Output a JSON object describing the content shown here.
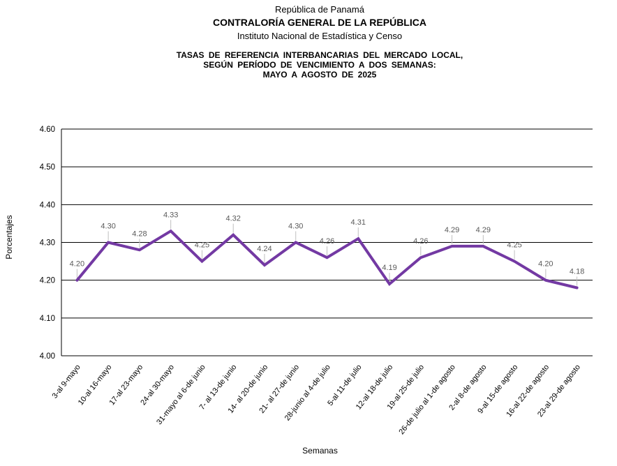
{
  "header": {
    "line1": "República de Panamá",
    "line2": "CONTRALORÍA GENERAL DE LA REPÚBLICA",
    "line3": "Instituto Nacional de Estadística y Censo"
  },
  "chart_title": {
    "line1": "TASAS DE REFERENCIA INTERBANCARIAS DEL MERCADO LOCAL,",
    "line2": "SEGÚN PERÍODO DE VENCIMIENTO A DOS SEMANAS:",
    "line3": "MAYO A AGOSTO DE 2025"
  },
  "chart_data": {
    "type": "line",
    "title": "TASAS DE REFERENCIA INTERBANCARIAS DEL MERCADO LOCAL, SEGÚN PERÍODO DE VENCIMIENTO A DOS SEMANAS: MAYO A AGOSTO DE 2025",
    "categories": [
      "3-al 9-mayo",
      "10-al 16-mayo",
      "17-al 23-mayo",
      "24-al 30-mayo",
      "31-mayo al 6-de junio",
      "7- al 13-de junio",
      "14- al 20-de junio",
      "21- al 27-de junio",
      "28-junio al 4-de julio",
      "5-al 11-de julio",
      "12-al 18-de julio",
      "19-al 25-de julio",
      "26-de julio al 1-de agosto",
      "2-al 8-de agosto",
      "9-al 15-de agosto",
      "16-al 22-de agosto",
      "23-al 29-de agosto"
    ],
    "values": [
      4.2,
      4.3,
      4.28,
      4.33,
      4.25,
      4.32,
      4.24,
      4.3,
      4.26,
      4.31,
      4.19,
      4.26,
      4.29,
      4.29,
      4.25,
      4.2,
      4.18
    ],
    "xlabel": "Semanas",
    "ylabel": "Porcentajes",
    "ylim": [
      4.0,
      4.6
    ],
    "yticks": [
      "4.00",
      "4.10",
      "4.20",
      "4.30",
      "4.40",
      "4.50",
      "4.60"
    ],
    "grid": true,
    "legend": "none",
    "line_color": "#7339A3",
    "data_label_color": "#595959",
    "leader_line_color": "#BFBFBF",
    "axis_color": "#000000"
  }
}
